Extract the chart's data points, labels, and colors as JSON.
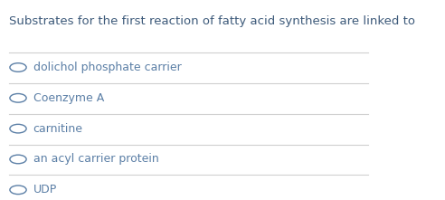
{
  "title": "Substrates for the first reaction of fatty acid synthesis are linked to",
  "title_color": "#3d5a7a",
  "title_fontsize": 9.5,
  "options": [
    "dolichol phosphate carrier",
    "Coenzyme A",
    "carnitine",
    "an acyl carrier protein",
    "UDP"
  ],
  "option_color": "#5b7fa6",
  "option_fontsize": 9.0,
  "background_color": "#ffffff",
  "line_color": "#d0d0d0",
  "radio_color": "#5b7fa6",
  "fig_width": 4.92,
  "fig_height": 2.21
}
